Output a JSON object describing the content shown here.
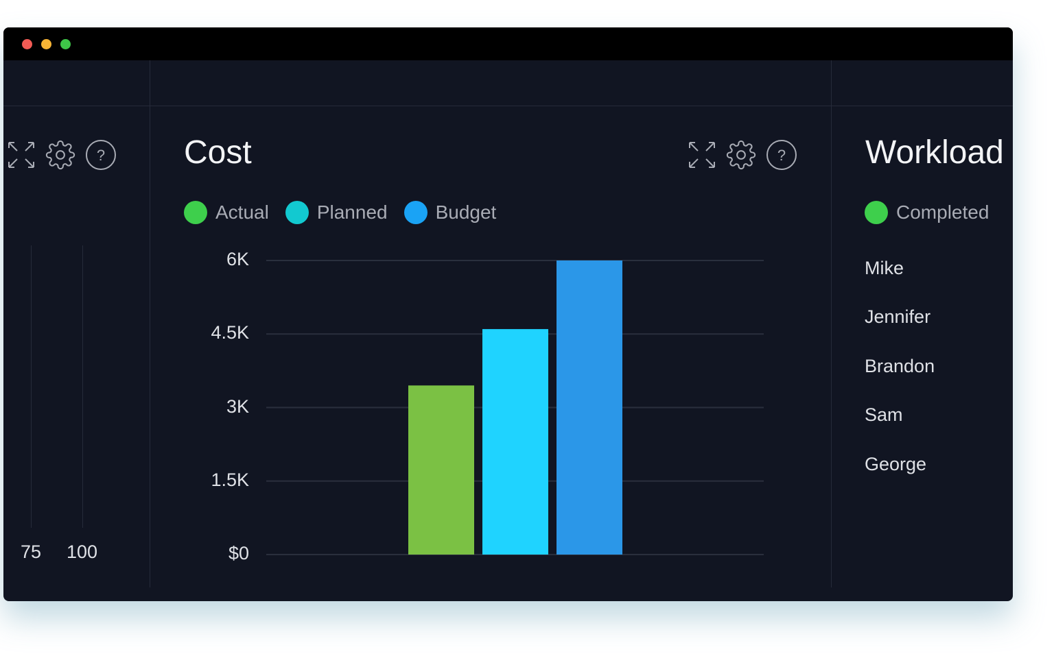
{
  "left_panel": {
    "axis_ticks": [
      "75",
      "100"
    ]
  },
  "cost_panel": {
    "title": "Cost"
  },
  "workload_panel": {
    "title": "Workload",
    "legend": [
      {
        "label": "Completed",
        "color": "#3ecf4c"
      }
    ],
    "people": [
      "Mike",
      "Jennifer",
      "Brandon",
      "Sam",
      "George"
    ]
  },
  "icons": [
    "expand-icon",
    "gear-icon",
    "help-icon"
  ],
  "chart_data": {
    "type": "bar",
    "title": "Cost",
    "categories": [
      "Actual",
      "Planned",
      "Budget"
    ],
    "values": [
      3450,
      4600,
      6000
    ],
    "colors": [
      "#7bc144",
      "#1fd3ff",
      "#2b97e8"
    ],
    "legend": [
      {
        "label": "Actual",
        "color": "#3ecf4c"
      },
      {
        "label": "Planned",
        "color": "#12c9d0"
      },
      {
        "label": "Budget",
        "color": "#1aa3f5"
      }
    ],
    "legend_placement": "top-left",
    "yticks": [
      0,
      1500,
      3000,
      4500,
      6000
    ],
    "ytick_labels": [
      "$0",
      "1.5K",
      "3K",
      "4.5K",
      "6K"
    ],
    "ylim": [
      0,
      6000
    ],
    "grid": true
  }
}
